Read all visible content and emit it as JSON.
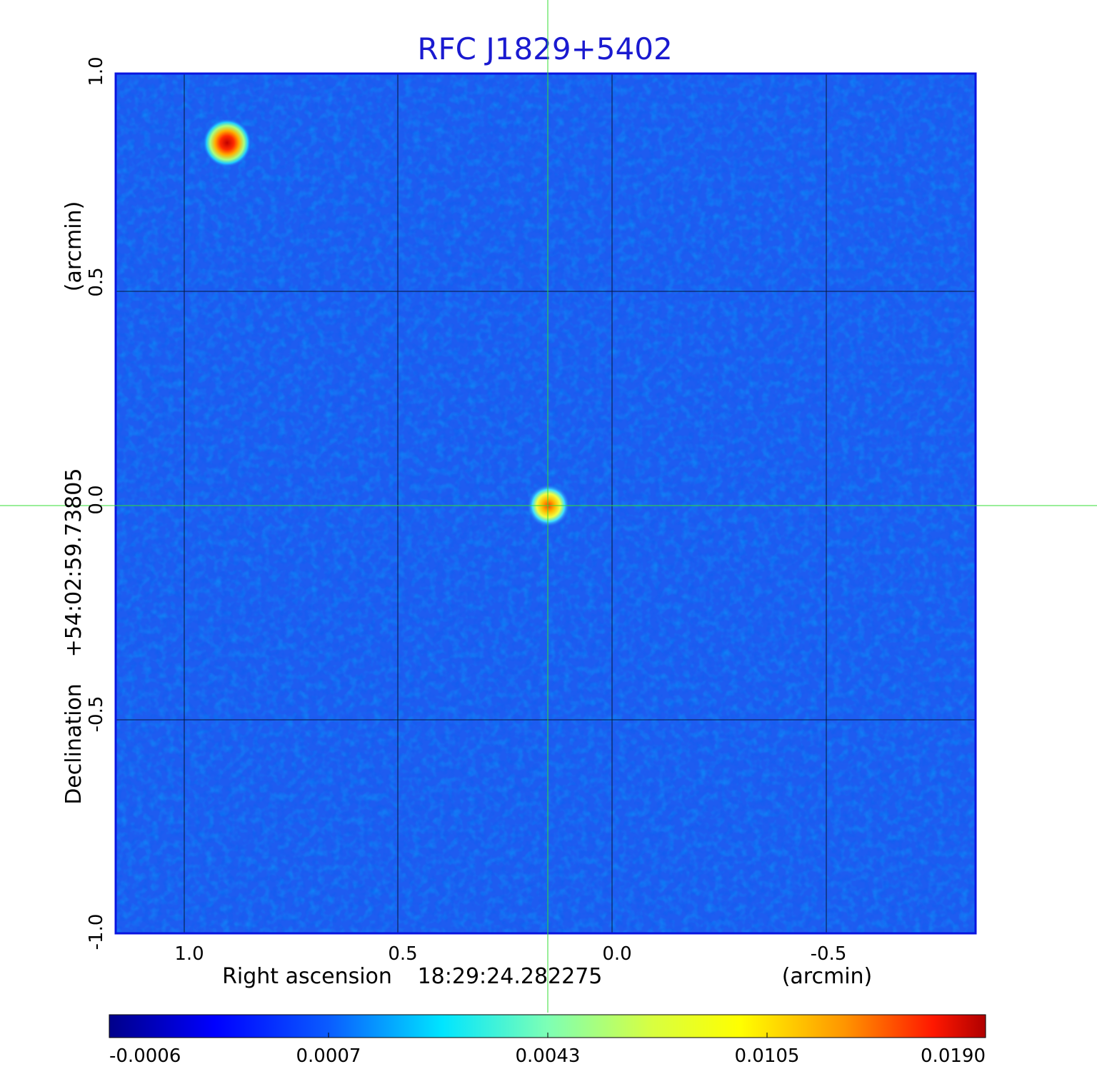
{
  "title": "RFC J1829+5402",
  "y_axis": {
    "label_parts": [
      "Declination",
      "+54:02:59.73805"
    ],
    "unit": "(arcmin)",
    "ticks": [
      "1.0",
      "0.5",
      "0.0",
      "-0.5",
      "-1.0"
    ]
  },
  "x_axis": {
    "label_parts": [
      "Right ascension",
      "18:29:24.282275"
    ],
    "unit": "(arcmin)",
    "ticks": [
      "1.0",
      "0.5",
      "0.0",
      "-0.5"
    ]
  },
  "colorbar": {
    "tick_labels": [
      "-0.0006",
      "0.0007",
      "0.0043",
      "0.0105",
      "0.0190"
    ]
  },
  "colors": {
    "title": "#1a1ad0",
    "frame": "#0a14e0",
    "background_map": "#1e5cf0",
    "crosshair": "#33dd33",
    "grid": "#000000"
  },
  "sources": [
    {
      "name": "bright-source-upper-left",
      "ra_offset_arcmin": 0.9,
      "dec_offset_arcmin": 0.85,
      "peak": 0.019
    },
    {
      "name": "target-source-center",
      "ra_offset_arcmin": 0.15,
      "dec_offset_arcmin": 0.0,
      "peak": 0.0105
    }
  ]
}
